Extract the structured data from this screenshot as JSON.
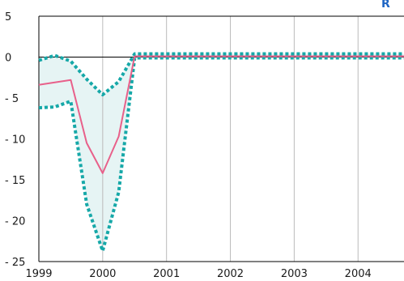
{
  "chart_data": {
    "type": "line",
    "title": "",
    "corner_label": "R",
    "xlabel": "",
    "ylabel": "",
    "x_ticks": [
      "1999",
      "2000",
      "2001",
      "2002",
      "2003",
      "2004"
    ],
    "y_ticks": [
      "5",
      "0",
      "- 5",
      "- 10",
      "- 15",
      "- 20",
      "- 25"
    ],
    "y_tick_values": [
      5,
      0,
      -5,
      -10,
      -15,
      -20,
      -25
    ],
    "xlim": [
      1999.0,
      2004.72
    ],
    "ylim": [
      -25,
      5
    ],
    "grid": "vertical",
    "zero_line": true,
    "series": [
      {
        "role": "central",
        "x": [
          1999.0,
          1999.5,
          1999.75,
          2000.0,
          2000.25,
          2000.5,
          2004.72
        ],
        "y": [
          -3.4,
          -2.8,
          -10.5,
          -14.2,
          -9.7,
          0.1,
          0.1
        ]
      },
      {
        "role": "upper-band",
        "x": [
          1999.0,
          1999.25,
          1999.5,
          1999.75,
          2000.0,
          2000.25,
          2000.5,
          2004.72
        ],
        "y": [
          -0.4,
          0.2,
          -0.5,
          -2.7,
          -4.6,
          -3.0,
          0.4,
          0.4
        ]
      },
      {
        "role": "lower-band",
        "x": [
          1999.0,
          1999.25,
          1999.5,
          1999.75,
          2000.0,
          2000.25,
          2000.5,
          2004.72
        ],
        "y": [
          -6.2,
          -6.1,
          -5.4,
          -18.0,
          -23.7,
          -16.5,
          -0.1,
          -0.1
        ]
      }
    ],
    "colors": {
      "central": "#e8608a",
      "band_line": "#16a8a8",
      "band_fill": "#e6f4f4",
      "axis": "#000000",
      "grid": "#bbbbbb",
      "corner_label": "#1f66c4"
    }
  }
}
